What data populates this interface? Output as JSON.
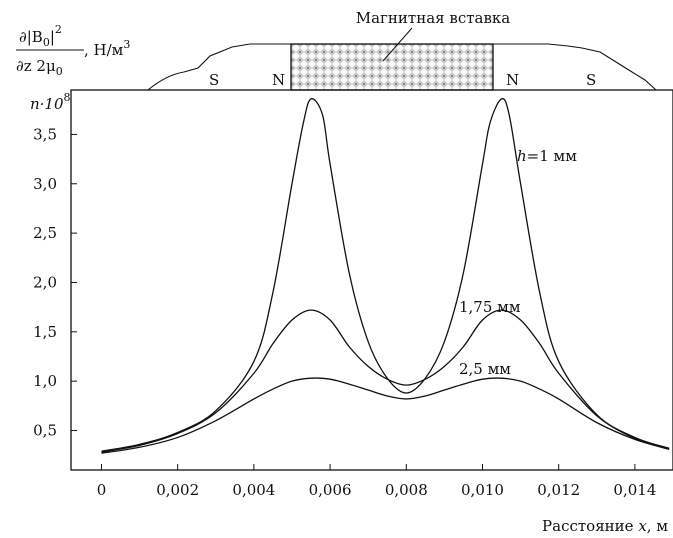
{
  "chart_data": {
    "type": "line",
    "ylabel_main": "∂|B₀|² / ∂z 2μ₀,  Н/м³",
    "ylabel_numerator": "∂|B",
    "ylabel_sub": "0",
    "ylabel_close": "|",
    "ylabel_sup": "2",
    "ylabel_denominator": "∂z 2μ",
    "ylabel_den_sub": "0",
    "ylabel_units": ",  Н/м",
    "ylabel_units_sup": "3",
    "ylabel_scale": "n·10",
    "ylabel_scale_sup": "8",
    "xlabel": "Расстояние x, м",
    "xlabel_text": "Расстояние ",
    "xlabel_var": "x",
    "xlabel_unit": ", м",
    "xlim": [
      -0.0008,
      0.015
    ],
    "ylim": [
      0.1,
      3.95
    ],
    "x_ticks": [
      0,
      0.002,
      0.004,
      0.006,
      0.008,
      0.01,
      0.012,
      0.014
    ],
    "x_tick_labels": [
      "0",
      "0,002",
      "0,004",
      "0,006",
      "0,008",
      "0,010",
      "0,012",
      "0,014"
    ],
    "y_ticks": [
      0.5,
      1.0,
      1.5,
      2.0,
      2.5,
      3.0,
      3.5
    ],
    "y_tick_labels": [
      "0,5",
      "1,0",
      "1,5",
      "2,0",
      "2,5",
      "3,0",
      "3,5"
    ],
    "series": [
      {
        "name": "h=1 мм",
        "label_var": "h",
        "label_rest": "=1 мм",
        "x": [
          0,
          0.001,
          0.002,
          0.003,
          0.004,
          0.0045,
          0.005,
          0.0053,
          0.0055,
          0.0058,
          0.006,
          0.0065,
          0.007,
          0.0075,
          0.008,
          0.0085,
          0.009,
          0.0095,
          0.01,
          0.0102,
          0.0105,
          0.0107,
          0.011,
          0.0115,
          0.012,
          0.013,
          0.014,
          0.0149
        ],
        "y": [
          0.29,
          0.36,
          0.48,
          0.7,
          1.2,
          1.9,
          3.0,
          3.62,
          3.86,
          3.7,
          3.2,
          2.1,
          1.4,
          1.03,
          0.88,
          1.03,
          1.4,
          2.1,
          3.2,
          3.62,
          3.86,
          3.7,
          3.0,
          1.9,
          1.2,
          0.66,
          0.43,
          0.32
        ]
      },
      {
        "name": "1,75 мм",
        "x": [
          0,
          0.001,
          0.002,
          0.003,
          0.004,
          0.0045,
          0.005,
          0.0055,
          0.006,
          0.0065,
          0.007,
          0.0075,
          0.008,
          0.0085,
          0.009,
          0.0095,
          0.01,
          0.0105,
          0.011,
          0.0115,
          0.012,
          0.013,
          0.014,
          0.0149
        ],
        "y": [
          0.28,
          0.35,
          0.47,
          0.68,
          1.08,
          1.38,
          1.62,
          1.72,
          1.62,
          1.35,
          1.15,
          1.02,
          0.96,
          1.02,
          1.15,
          1.35,
          1.62,
          1.72,
          1.62,
          1.38,
          1.08,
          0.65,
          0.42,
          0.31
        ]
      },
      {
        "name": "2,5 мм",
        "x": [
          0,
          0.001,
          0.002,
          0.003,
          0.004,
          0.0045,
          0.005,
          0.0055,
          0.006,
          0.0065,
          0.007,
          0.0075,
          0.008,
          0.0085,
          0.009,
          0.0095,
          0.01,
          0.0105,
          0.011,
          0.0115,
          0.012,
          0.013,
          0.014,
          0.0149
        ],
        "y": [
          0.27,
          0.33,
          0.43,
          0.6,
          0.82,
          0.92,
          1.0,
          1.03,
          1.02,
          0.97,
          0.91,
          0.85,
          0.82,
          0.85,
          0.91,
          0.97,
          1.02,
          1.03,
          1.0,
          0.92,
          0.82,
          0.58,
          0.41,
          0.31
        ]
      }
    ],
    "series_label_1": "1,75 мм",
    "series_label_2": "2,5 мм",
    "magnet": {
      "insert_label": "Магнитная вставка",
      "pole_labels": [
        "S",
        "N",
        "N",
        "S"
      ],
      "insert_x_range": [
        0.0052,
        0.0105
      ]
    }
  }
}
